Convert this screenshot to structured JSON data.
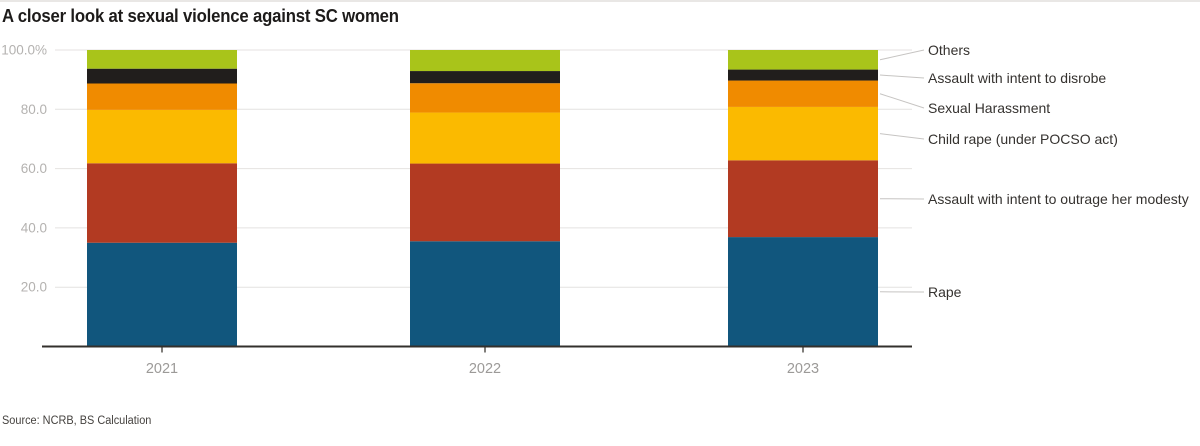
{
  "page": {
    "title": "A closer look at sexual violence against SC women",
    "source": "Source: NCRB, BS Calculation"
  },
  "chart_data": {
    "type": "bar",
    "variant": "stacked-100-percent",
    "title": "A closer look at sexual violence against SC women",
    "xlabel": "",
    "ylabel": "",
    "unit": "%",
    "grid": true,
    "legend_position": "right",
    "categories": [
      "2021",
      "2022",
      "2023"
    ],
    "series": [
      {
        "name": "Rape",
        "color": "#11567d",
        "values": [
          35.0,
          35.5,
          36.9
        ]
      },
      {
        "name": "Assault with intent to outrage her modesty",
        "color": "#b23a22",
        "values": [
          26.8,
          26.2,
          25.9
        ]
      },
      {
        "name": "Child rape (under POCSO act)",
        "color": "#fbba00",
        "values": [
          18.0,
          17.2,
          18.0
        ]
      },
      {
        "name": "Sexual Harassment",
        "color": "#f08b00",
        "values": [
          8.9,
          9.9,
          8.9
        ]
      },
      {
        "name": "Assault with intent to disrobe",
        "color": "#211e1c",
        "values": [
          5.0,
          4.1,
          3.7
        ]
      },
      {
        "name": "Others",
        "color": "#a9c41a",
        "values": [
          6.3,
          7.1,
          6.6
        ]
      }
    ],
    "y_axis": {
      "min": 0,
      "max": 100,
      "tick_labels": [
        "100.0%",
        "80.0",
        "60.0",
        "40.0",
        "20.0"
      ],
      "tick_values": [
        100,
        80,
        60,
        40,
        20
      ]
    }
  }
}
